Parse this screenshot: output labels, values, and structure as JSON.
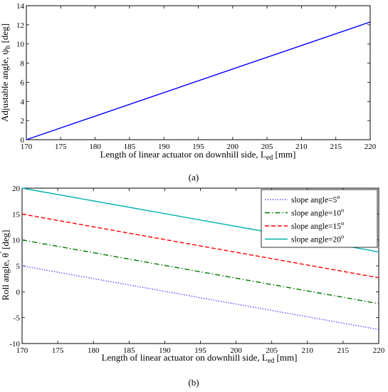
{
  "chart_data": [
    {
      "type": "line",
      "caption": "(a)",
      "xlabel": "Length of linear actuator on downhill side, L",
      "xlabel_sub": "ed",
      "xlabel_unit": " [mm]",
      "ylabel": "Adjustable angle, ψ",
      "ylabel_sub": "h",
      "ylabel_unit": " [deg]",
      "xlim": [
        170,
        220
      ],
      "ylim": [
        0,
        14
      ],
      "xticks": [
        170,
        175,
        180,
        185,
        190,
        195,
        200,
        205,
        210,
        215,
        220
      ],
      "yticks": [
        0,
        2,
        4,
        6,
        8,
        10,
        12,
        14
      ],
      "grid": false,
      "series": [
        {
          "color": "#0000ff",
          "dash": "solid",
          "x": [
            170,
            220
          ],
          "y": [
            0,
            12.3
          ]
        }
      ]
    },
    {
      "type": "line",
      "caption": "(b)",
      "xlabel": "Length of linear actuator on downhill side, L",
      "xlabel_sub": "ed",
      "xlabel_unit": " [mm]",
      "ylabel": "Roll angle,  θ",
      "ylabel_sup": "'",
      "ylabel_unit": " [deg]",
      "xlim": [
        170,
        220
      ],
      "ylim": [
        -10,
        20
      ],
      "xticks": [
        170,
        175,
        180,
        185,
        190,
        195,
        200,
        205,
        210,
        215,
        220
      ],
      "yticks": [
        -10,
        -5,
        0,
        5,
        10,
        15,
        20
      ],
      "grid": false,
      "legend_position": "top-right",
      "series": [
        {
          "name": "slope angle=5",
          "name_sup": "o",
          "color": "#5555ff",
          "dash": "dotted",
          "x": [
            170,
            220
          ],
          "y": [
            5,
            -7.3
          ]
        },
        {
          "name": "slope angle=10",
          "name_sup": "o",
          "color": "#007700",
          "dash": "dashdot",
          "x": [
            170,
            220
          ],
          "y": [
            10,
            -2.3
          ]
        },
        {
          "name": "slope angle=15",
          "name_sup": "o",
          "color": "#ff0000",
          "dash": "dashed",
          "x": [
            170,
            220
          ],
          "y": [
            15,
            2.7
          ]
        },
        {
          "name": "slope angle=20",
          "name_sup": "o",
          "color": "#00b0b0",
          "dash": "solid",
          "x": [
            170,
            220
          ],
          "y": [
            20,
            7.7
          ]
        }
      ]
    }
  ]
}
